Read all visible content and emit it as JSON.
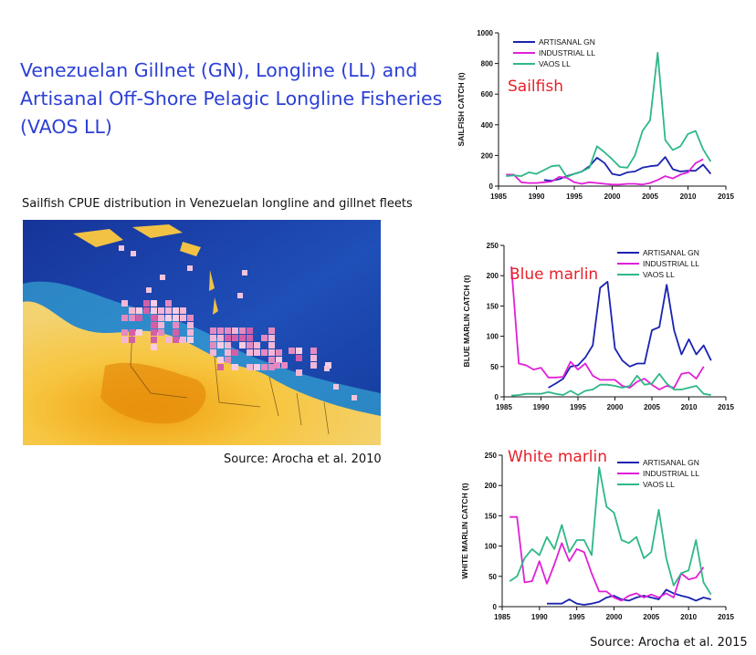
{
  "title": "Venezuelan Gillnet (GN), Longline (LL) and Artisanal Off-Shore Pelagic Longline Fisheries (VAOS LL)",
  "map": {
    "caption": "Sailfish CPUE distribution in Venezuelan longline and gillnet fleets",
    "source": "Source: Arocha et al. 2010"
  },
  "chart_source": "Source: Arocha et al. 2015",
  "colors": {
    "artisanal_gn": "#1a23b0",
    "industrial_ll": "#e020d8",
    "vaos_ll": "#2fb886",
    "title": "#2b3fd6",
    "species_label": "#e8202a"
  },
  "chart_data": [
    {
      "type": "line",
      "label": "Sailfish",
      "ylabel": "SAILFISH CATCH (t)",
      "xlim": [
        1985,
        2015
      ],
      "ylim": [
        0,
        1000
      ],
      "xticks": [
        1985,
        1990,
        1995,
        2000,
        2005,
        2010,
        2015
      ],
      "yticks": [
        0,
        200,
        400,
        600,
        800,
        1000
      ],
      "legend": "top-left",
      "series": [
        {
          "name": "ARTISANAL GN",
          "color": "#1a23b0",
          "points": [
            [
              1991,
              40
            ],
            [
              1992,
              35
            ],
            [
              1993,
              45
            ],
            [
              1994,
              65
            ],
            [
              1995,
              80
            ],
            [
              1996,
              95
            ],
            [
              1997,
              130
            ],
            [
              1998,
              185
            ],
            [
              1999,
              150
            ],
            [
              2000,
              80
            ],
            [
              2001,
              70
            ],
            [
              2002,
              90
            ],
            [
              2003,
              95
            ],
            [
              2004,
              120
            ],
            [
              2005,
              130
            ],
            [
              2006,
              135
            ],
            [
              2007,
              190
            ],
            [
              2008,
              110
            ],
            [
              2009,
              95
            ],
            [
              2010,
              100
            ],
            [
              2011,
              100
            ],
            [
              2012,
              140
            ],
            [
              2013,
              80
            ]
          ]
        },
        {
          "name": "INDUSTRIAL LL",
          "color": "#e020d8",
          "points": [
            [
              1986,
              75
            ],
            [
              1987,
              75
            ],
            [
              1988,
              25
            ],
            [
              1989,
              20
            ],
            [
              1990,
              20
            ],
            [
              1991,
              25
            ],
            [
              1992,
              30
            ],
            [
              1993,
              60
            ],
            [
              1994,
              55
            ],
            [
              1995,
              25
            ],
            [
              1996,
              15
            ],
            [
              1997,
              25
            ],
            [
              1998,
              20
            ],
            [
              1999,
              15
            ],
            [
              2000,
              10
            ],
            [
              2001,
              10
            ],
            [
              2002,
              15
            ],
            [
              2003,
              15
            ],
            [
              2004,
              10
            ],
            [
              2005,
              20
            ],
            [
              2006,
              40
            ],
            [
              2007,
              65
            ],
            [
              2008,
              50
            ],
            [
              2009,
              75
            ],
            [
              2010,
              90
            ],
            [
              2011,
              150
            ],
            [
              2012,
              175
            ]
          ]
        },
        {
          "name": "VAOS LL",
          "color": "#2fb886",
          "points": [
            [
              1986,
              65
            ],
            [
              1987,
              70
            ],
            [
              1988,
              65
            ],
            [
              1989,
              90
            ],
            [
              1990,
              80
            ],
            [
              1991,
              105
            ],
            [
              1992,
              130
            ],
            [
              1993,
              135
            ],
            [
              1994,
              60
            ],
            [
              1995,
              80
            ],
            [
              1996,
              95
            ],
            [
              1997,
              120
            ],
            [
              1998,
              260
            ],
            [
              1999,
              220
            ],
            [
              2000,
              175
            ],
            [
              2001,
              125
            ],
            [
              2002,
              120
            ],
            [
              2003,
              200
            ],
            [
              2004,
              360
            ],
            [
              2005,
              430
            ],
            [
              2006,
              870
            ],
            [
              2007,
              300
            ],
            [
              2008,
              235
            ],
            [
              2009,
              260
            ],
            [
              2010,
              340
            ],
            [
              2011,
              360
            ],
            [
              2012,
              240
            ],
            [
              2013,
              160
            ]
          ]
        }
      ]
    },
    {
      "type": "line",
      "label": "Blue marlin",
      "ylabel": "BLUE MARLIN CATCH (t)",
      "xlim": [
        1985,
        2015
      ],
      "ylim": [
        0,
        250
      ],
      "xticks": [
        1985,
        1990,
        1995,
        2000,
        2005,
        2010,
        2015
      ],
      "yticks": [
        0,
        50,
        100,
        150,
        200,
        250
      ],
      "legend": "top-right",
      "series": [
        {
          "name": "ARTISANAL GN",
          "color": "#1a23b0",
          "points": [
            [
              1991,
              15
            ],
            [
              1992,
              22
            ],
            [
              1993,
              30
            ],
            [
              1994,
              50
            ],
            [
              1995,
              52
            ],
            [
              1996,
              65
            ],
            [
              1997,
              85
            ],
            [
              1998,
              180
            ],
            [
              1999,
              190
            ],
            [
              2000,
              80
            ],
            [
              2001,
              60
            ],
            [
              2002,
              50
            ],
            [
              2003,
              55
            ],
            [
              2004,
              55
            ],
            [
              2005,
              110
            ],
            [
              2006,
              115
            ],
            [
              2007,
              185
            ],
            [
              2008,
              110
            ],
            [
              2009,
              70
            ],
            [
              2010,
              95
            ],
            [
              2011,
              70
            ],
            [
              2012,
              85
            ],
            [
              2013,
              60
            ]
          ]
        },
        {
          "name": "INDUSTRIAL LL",
          "color": "#e020d8",
          "points": [
            [
              1986,
              215
            ],
            [
              1987,
              55
            ],
            [
              1988,
              52
            ],
            [
              1989,
              45
            ],
            [
              1990,
              48
            ],
            [
              1991,
              32
            ],
            [
              1992,
              32
            ],
            [
              1993,
              33
            ],
            [
              1994,
              58
            ],
            [
              1995,
              45
            ],
            [
              1996,
              55
            ],
            [
              1997,
              35
            ],
            [
              1998,
              28
            ],
            [
              1999,
              28
            ],
            [
              2000,
              28
            ],
            [
              2001,
              18
            ],
            [
              2002,
              15
            ],
            [
              2003,
              25
            ],
            [
              2004,
              30
            ],
            [
              2005,
              20
            ],
            [
              2006,
              12
            ],
            [
              2007,
              18
            ],
            [
              2008,
              15
            ],
            [
              2009,
              38
            ],
            [
              2010,
              40
            ],
            [
              2011,
              30
            ],
            [
              2012,
              50
            ]
          ]
        },
        {
          "name": "VAOS LL",
          "color": "#2fb886",
          "points": [
            [
              1986,
              2
            ],
            [
              1987,
              3
            ],
            [
              1988,
              5
            ],
            [
              1989,
              5
            ],
            [
              1990,
              5
            ],
            [
              1991,
              8
            ],
            [
              1992,
              5
            ],
            [
              1993,
              3
            ],
            [
              1994,
              10
            ],
            [
              1995,
              3
            ],
            [
              1996,
              10
            ],
            [
              1997,
              12
            ],
            [
              1998,
              20
            ],
            [
              1999,
              20
            ],
            [
              2000,
              18
            ],
            [
              2001,
              15
            ],
            [
              2002,
              18
            ],
            [
              2003,
              35
            ],
            [
              2004,
              20
            ],
            [
              2005,
              22
            ],
            [
              2006,
              38
            ],
            [
              2007,
              22
            ],
            [
              2008,
              12
            ],
            [
              2009,
              12
            ],
            [
              2010,
              15
            ],
            [
              2011,
              18
            ],
            [
              2012,
              5
            ],
            [
              2013,
              3
            ]
          ]
        }
      ]
    },
    {
      "type": "line",
      "label": "White marlin",
      "ylabel": "WHITE MARLIN CATCH (t)",
      "xlim": [
        1985,
        2015
      ],
      "ylim": [
        0,
        250
      ],
      "xticks": [
        1985,
        1990,
        1995,
        2000,
        2005,
        2010,
        2015
      ],
      "yticks": [
        0,
        50,
        100,
        150,
        200,
        250
      ],
      "legend": "top-right",
      "series": [
        {
          "name": "ARTISANAL GN",
          "color": "#1a23b0",
          "points": [
            [
              1991,
              5
            ],
            [
              1992,
              5
            ],
            [
              1993,
              5
            ],
            [
              1994,
              12
            ],
            [
              1995,
              5
            ],
            [
              1996,
              3
            ],
            [
              1997,
              5
            ],
            [
              1998,
              8
            ],
            [
              1999,
              15
            ],
            [
              2000,
              18
            ],
            [
              2001,
              12
            ],
            [
              2002,
              10
            ],
            [
              2003,
              15
            ],
            [
              2004,
              18
            ],
            [
              2005,
              15
            ],
            [
              2006,
              12
            ],
            [
              2007,
              28
            ],
            [
              2008,
              22
            ],
            [
              2009,
              18
            ],
            [
              2010,
              15
            ],
            [
              2011,
              10
            ],
            [
              2012,
              15
            ],
            [
              2013,
              12
            ]
          ]
        },
        {
          "name": "INDUSTRIAL LL",
          "color": "#e020d8",
          "points": [
            [
              1986,
              148
            ],
            [
              1987,
              148
            ],
            [
              1988,
              40
            ],
            [
              1989,
              42
            ],
            [
              1990,
              75
            ],
            [
              1991,
              38
            ],
            [
              1992,
              70
            ],
            [
              1993,
              105
            ],
            [
              1994,
              75
            ],
            [
              1995,
              95
            ],
            [
              1996,
              90
            ],
            [
              1997,
              55
            ],
            [
              1998,
              25
            ],
            [
              1999,
              25
            ],
            [
              2000,
              15
            ],
            [
              2001,
              10
            ],
            [
              2002,
              18
            ],
            [
              2003,
              22
            ],
            [
              2004,
              15
            ],
            [
              2005,
              20
            ],
            [
              2006,
              15
            ],
            [
              2007,
              22
            ],
            [
              2008,
              15
            ],
            [
              2009,
              55
            ],
            [
              2010,
              45
            ],
            [
              2011,
              48
            ],
            [
              2012,
              65
            ]
          ]
        },
        {
          "name": "VAOS LL",
          "color": "#2fb886",
          "points": [
            [
              1986,
              42
            ],
            [
              1987,
              50
            ],
            [
              1988,
              80
            ],
            [
              1989,
              95
            ],
            [
              1990,
              85
            ],
            [
              1991,
              115
            ],
            [
              1992,
              95
            ],
            [
              1993,
              135
            ],
            [
              1994,
              90
            ],
            [
              1995,
              110
            ],
            [
              1996,
              110
            ],
            [
              1997,
              85
            ],
            [
              1998,
              230
            ],
            [
              1999,
              165
            ],
            [
              2000,
              155
            ],
            [
              2001,
              110
            ],
            [
              2002,
              105
            ],
            [
              2003,
              115
            ],
            [
              2004,
              80
            ],
            [
              2005,
              90
            ],
            [
              2006,
              160
            ],
            [
              2007,
              80
            ],
            [
              2008,
              35
            ],
            [
              2009,
              55
            ],
            [
              2010,
              60
            ],
            [
              2011,
              110
            ],
            [
              2012,
              40
            ],
            [
              2013,
              20
            ]
          ]
        }
      ]
    }
  ]
}
